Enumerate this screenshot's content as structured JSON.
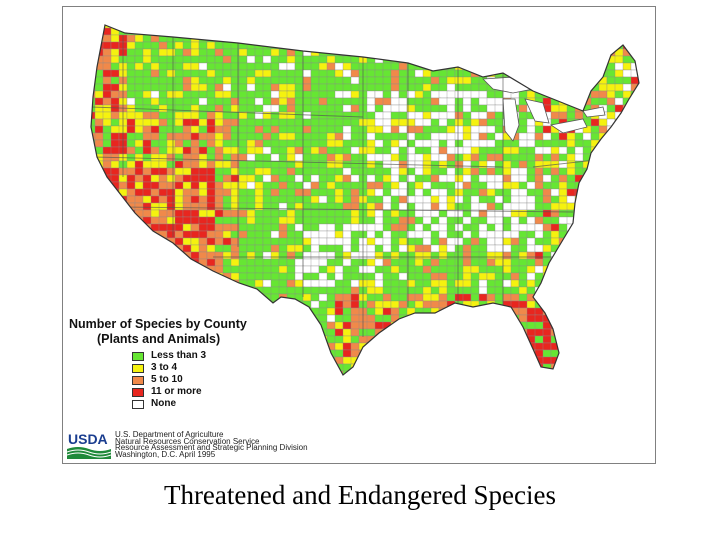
{
  "legend": {
    "title": "Number of Species by County",
    "subtitle": "(Plants and Animals)",
    "items": [
      {
        "label": "Less than 3",
        "color": "#66e633"
      },
      {
        "label": "3 to 4",
        "color": "#f5f20f"
      },
      {
        "label": "5 to 10",
        "color": "#f0894a"
      },
      {
        "label": "11 or more",
        "color": "#e8261f"
      },
      {
        "label": "None",
        "color": "#ffffff"
      }
    ]
  },
  "source": {
    "logo_text": "USDA",
    "lines": [
      "U.S. Department of Agriculture",
      "Natural Resources Conservation Service",
      "Resource Assessment and Strategic Planning Division",
      "Washington, D.C.  April 1995"
    ]
  },
  "caption": "Threatened and Endangered Species",
  "map": {
    "border_color": "#555555",
    "water_color": "#ffffff"
  }
}
